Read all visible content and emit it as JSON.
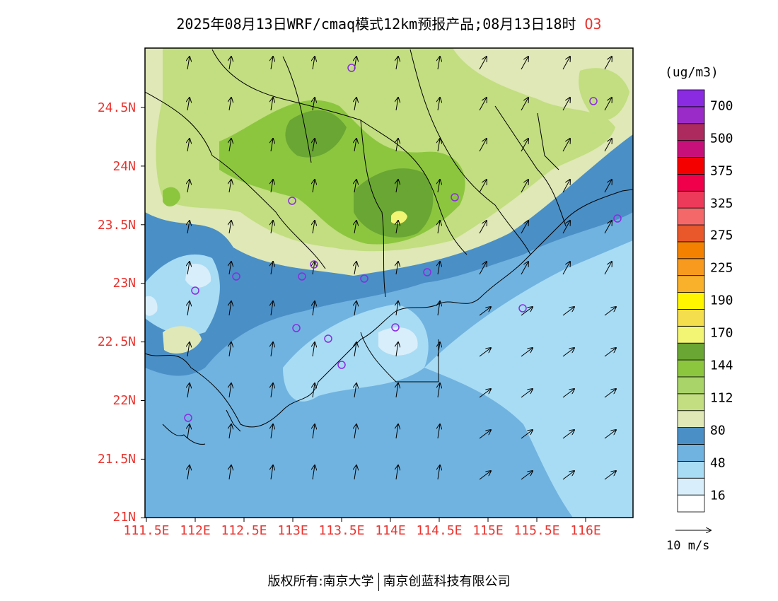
{
  "title": {
    "text": "2025年08月13日WRF/cmaq模式12km预报产品;08月13日18时",
    "species": "O3"
  },
  "lat_labels": [
    "24.5N",
    "24N",
    "23.5N",
    "23N",
    "22.5N",
    "22N",
    "21.5N",
    "21N"
  ],
  "lon_labels": [
    "111.5E",
    "112E",
    "112.5E",
    "113E",
    "113.5E",
    "114E",
    "114.5E",
    "115E",
    "115.5E",
    "116E"
  ],
  "colorbar": {
    "unit": "(ug/m3)",
    "colors": [
      "#ffffff",
      "#d8eefa",
      "#a8dcf4",
      "#70b3e0",
      "#4a8fc6",
      "#dfe8b6",
      "#c2de80",
      "#a9d46a",
      "#8cc63f",
      "#6aa633",
      "#f2f573",
      "#f4de4d",
      "#fff500",
      "#f9b02a",
      "#f79a1e",
      "#f48200",
      "#e8582a",
      "#f4686a",
      "#ee3a5a",
      "#f0004a",
      "#f50000",
      "#c8107a",
      "#ad2a5e",
      "#9b2bc9",
      "#8a2be2"
    ],
    "labels": [
      "16",
      "48",
      "80",
      "112",
      "144",
      "170",
      "190",
      "225",
      "275",
      "325",
      "375",
      "500",
      "700"
    ]
  },
  "reference_vector": "10 m/s",
  "footer": {
    "left": "版权所有:南京大学",
    "right": "南京创蓝科技有限公司"
  },
  "colors": {
    "axis_label": "#e8342f",
    "species": "#e8342f",
    "station_marker": "#8a2be2"
  }
}
